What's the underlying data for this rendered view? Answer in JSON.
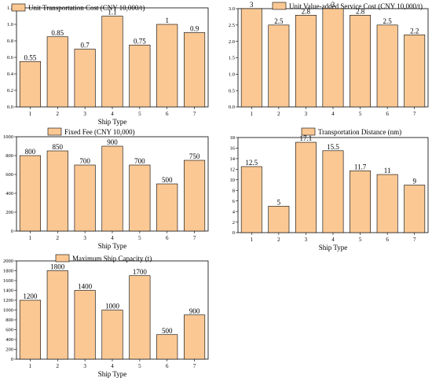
{
  "colors": {
    "bar_fill": "#fbc894",
    "bar_stroke": "#000000",
    "axis": "#000000",
    "background": "#ffffff"
  },
  "chart_data": [
    {
      "type": "bar",
      "legend": "Unit Transportation Cost (CNY 10,000/t)",
      "xlabel": "Ship Type",
      "categories": [
        "1",
        "2",
        "3",
        "4",
        "5",
        "6",
        "7"
      ],
      "values": [
        0.55,
        0.85,
        0.7,
        1.1,
        0.75,
        1,
        0.9
      ],
      "value_labels": [
        "0.55",
        "0.85",
        "0.7",
        "1.1",
        "0.75",
        "1",
        "0.9"
      ],
      "ylim": [
        0,
        1.2
      ],
      "yticks": [
        0,
        0.2,
        0.4,
        0.6,
        0.8,
        1.0,
        1.2
      ],
      "ytick_labels": [
        "0.0",
        "0.2",
        "0.4",
        "0.6",
        "0.8",
        "1.0",
        "1.2"
      ],
      "legend_position": "top-left",
      "grid": false
    },
    {
      "type": "bar",
      "legend": "Unit Value-added Service Cost (CNY 10,000/t)",
      "xlabel": "",
      "categories": [
        "1",
        "2",
        "3",
        "4",
        "5",
        "6",
        "7"
      ],
      "values": [
        3,
        2.5,
        2.8,
        3,
        2.8,
        2.5,
        2.2
      ],
      "value_labels": [
        "3",
        "2.5",
        "2.8",
        "3",
        "2.8",
        "2.5",
        "2.2"
      ],
      "ylim": [
        0,
        3.0
      ],
      "yticks": [
        0,
        0.5,
        1.0,
        1.5,
        2.0,
        2.5,
        3.0
      ],
      "ytick_labels": [
        "0.0",
        "0.5",
        "1.0",
        "1.5",
        "2.0",
        "2.5",
        "3.0"
      ],
      "legend_position": "top-right",
      "grid": false
    },
    {
      "type": "bar",
      "legend": "Fixed Fee (CNY 10,000)",
      "xlabel": "Ship Type",
      "categories": [
        "1",
        "2",
        "3",
        "4",
        "5",
        "6",
        "7"
      ],
      "values": [
        800,
        850,
        700,
        900,
        700,
        500,
        750
      ],
      "value_labels": [
        "800",
        "850",
        "700",
        "900",
        "700",
        "500",
        "750"
      ],
      "ylim": [
        0,
        1000
      ],
      "yticks": [
        0,
        200,
        400,
        600,
        800,
        1000
      ],
      "ytick_labels": [
        "0",
        "200",
        "400",
        "600",
        "800",
        "1000"
      ],
      "legend_position": "top-left",
      "grid": false
    },
    {
      "type": "bar",
      "legend": "Transportation Distance (nm)",
      "xlabel": "Ship Type",
      "categories": [
        "1",
        "2",
        "3",
        "4",
        "5",
        "6",
        "7"
      ],
      "values": [
        12.5,
        5,
        17.1,
        15.5,
        11.7,
        11,
        9
      ],
      "value_labels": [
        "12.5",
        "5",
        "17.1",
        "15.5",
        "11.7",
        "11",
        "9"
      ],
      "ylim": [
        0,
        18
      ],
      "yticks": [
        0,
        2,
        4,
        6,
        8,
        10,
        12,
        14,
        16,
        18
      ],
      "ytick_labels": [
        "0",
        "2",
        "4",
        "6",
        "8",
        "10",
        "12",
        "14",
        "16",
        "18"
      ],
      "legend_position": "top-center",
      "grid": false
    },
    {
      "type": "bar",
      "legend": "Maximum Ship Capacity (t)",
      "xlabel": "Ship Type",
      "categories": [
        "1",
        "2",
        "3",
        "4",
        "5",
        "6",
        "7"
      ],
      "values": [
        1200,
        1800,
        1400,
        1000,
        1700,
        500,
        900
      ],
      "value_labels": [
        "1200",
        "1800",
        "1400",
        "1000",
        "1700",
        "500",
        "900"
      ],
      "ylim": [
        0,
        2000
      ],
      "yticks": [
        0,
        200,
        400,
        600,
        800,
        1000,
        1200,
        1400,
        1600,
        1800,
        2000
      ],
      "ytick_labels": [
        "0",
        "200",
        "400",
        "600",
        "800",
        "1000",
        "1200",
        "1400",
        "1600",
        "1800",
        "2000"
      ],
      "legend_position": "top-center",
      "grid": false
    }
  ]
}
